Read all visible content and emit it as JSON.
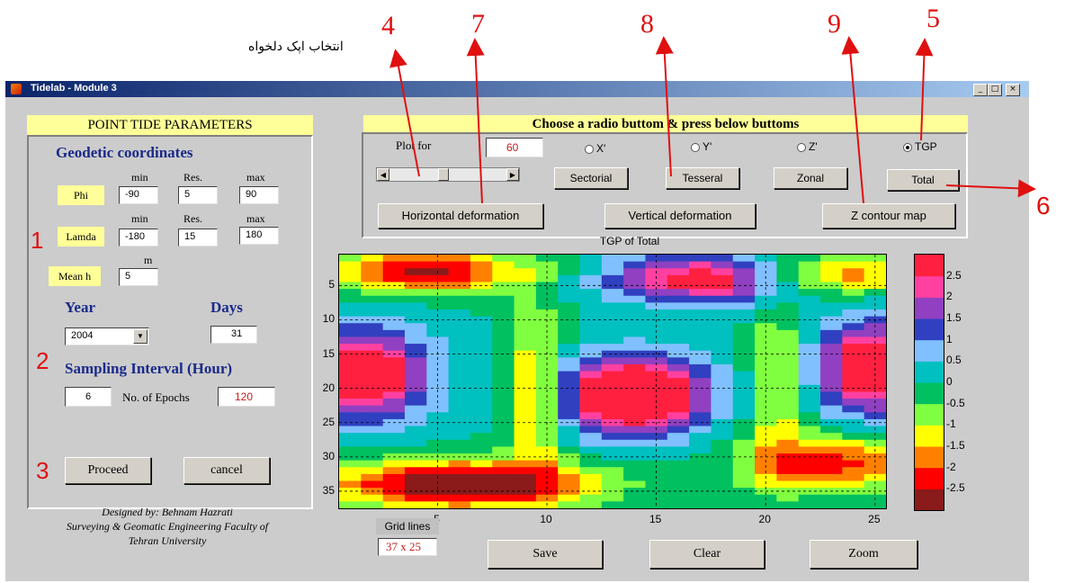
{
  "annotations": {
    "numbers": [
      "4",
      "7",
      "8",
      "9",
      "5",
      "6",
      "1",
      "2",
      "3"
    ],
    "persian_label": "انتخاب اپک دلخواه"
  },
  "window": {
    "title": "Tidelab - Module 3",
    "controls": [
      "_",
      "□",
      "×"
    ]
  },
  "left_panel": {
    "title": "POINT TIDE PARAMETERS",
    "geodetic_heading": "Geodetic coordinates",
    "col_min": "min",
    "col_res": "Res.",
    "col_max": "max",
    "phi": {
      "label": "Phi",
      "min": "-90",
      "res": "5",
      "max": "90"
    },
    "lamda": {
      "label": "Lamda",
      "min": "-180",
      "res": "15",
      "max": "180"
    },
    "mean_h": {
      "label": "Mean h",
      "unit": "m",
      "value": "5"
    },
    "year_label": "Year",
    "year_value": "2004",
    "days_label": "Days",
    "days_value": "31",
    "sampling_heading": "Sampling Interval (Hour)",
    "sampling_value": "6",
    "epochs_label": "No. of Epochs",
    "epochs_value": "120",
    "proceed_label": "Proceed",
    "cancel_label": "cancel",
    "credit_line1": "Designed by: Behnam Hazrati",
    "credit_line2": "Surveying & Geomatic Engineering Faculty of",
    "credit_line3": "Tehran University"
  },
  "top_panel": {
    "title": "Choose a radio buttom & press below buttoms",
    "plot_for_label": "Plot for",
    "plot_for_value": "60",
    "radios": [
      {
        "label": "X'",
        "selected": false
      },
      {
        "label": "Y'",
        "selected": false
      },
      {
        "label": "Z'",
        "selected": false
      },
      {
        "label": "TGP",
        "selected": true
      }
    ],
    "sectorial_label": "Sectorial",
    "tesseral_label": "Tesseral",
    "zonal_label": "Zonal",
    "total_label": "Total",
    "horizontal_label": "Horizontal deformation",
    "vertical_label": "Vertical deformation",
    "contour_label": "Z contour map",
    "slider_value": 0.4
  },
  "plot": {
    "title": "TGP of Total",
    "y_ticks": [
      "5",
      "10",
      "15",
      "20",
      "25",
      "30",
      "35"
    ],
    "x_ticks": [
      "5",
      "10",
      "15",
      "20",
      "25"
    ],
    "colorbar_ticks": [
      "2.5",
      "2",
      "1.5",
      "1",
      "0.5",
      "0",
      "-0.5",
      "-1",
      "-1.5",
      "-2",
      "-2.5"
    ],
    "grid_lines_label": "Grid lines",
    "grid_size": "37 x 25",
    "save_label": "Save",
    "clear_label": "Clear",
    "zoom_label": "Zoom"
  },
  "chart_data": {
    "type": "heatmap",
    "title": "TGP of Total",
    "rows": 37,
    "cols": 25,
    "xlim": [
      0.5,
      25.5
    ],
    "ylim": [
      37.5,
      0.5
    ],
    "clim": [
      -3,
      3
    ],
    "grid": true,
    "colormap": [
      "#8b1a1a",
      "#ff0000",
      "#ff8000",
      "#ffff00",
      "#80ff40",
      "#00c060",
      "#00c0c0",
      "#80c0ff",
      "#3040c0",
      "#9040c0",
      "#ff40a0",
      "#ff2040"
    ]
  },
  "colors": {
    "annotation_red": "#e01010",
    "label_yellow": "#ffff99",
    "heading_blue": "#1a2a8a",
    "window_gray": "#cccccc"
  }
}
